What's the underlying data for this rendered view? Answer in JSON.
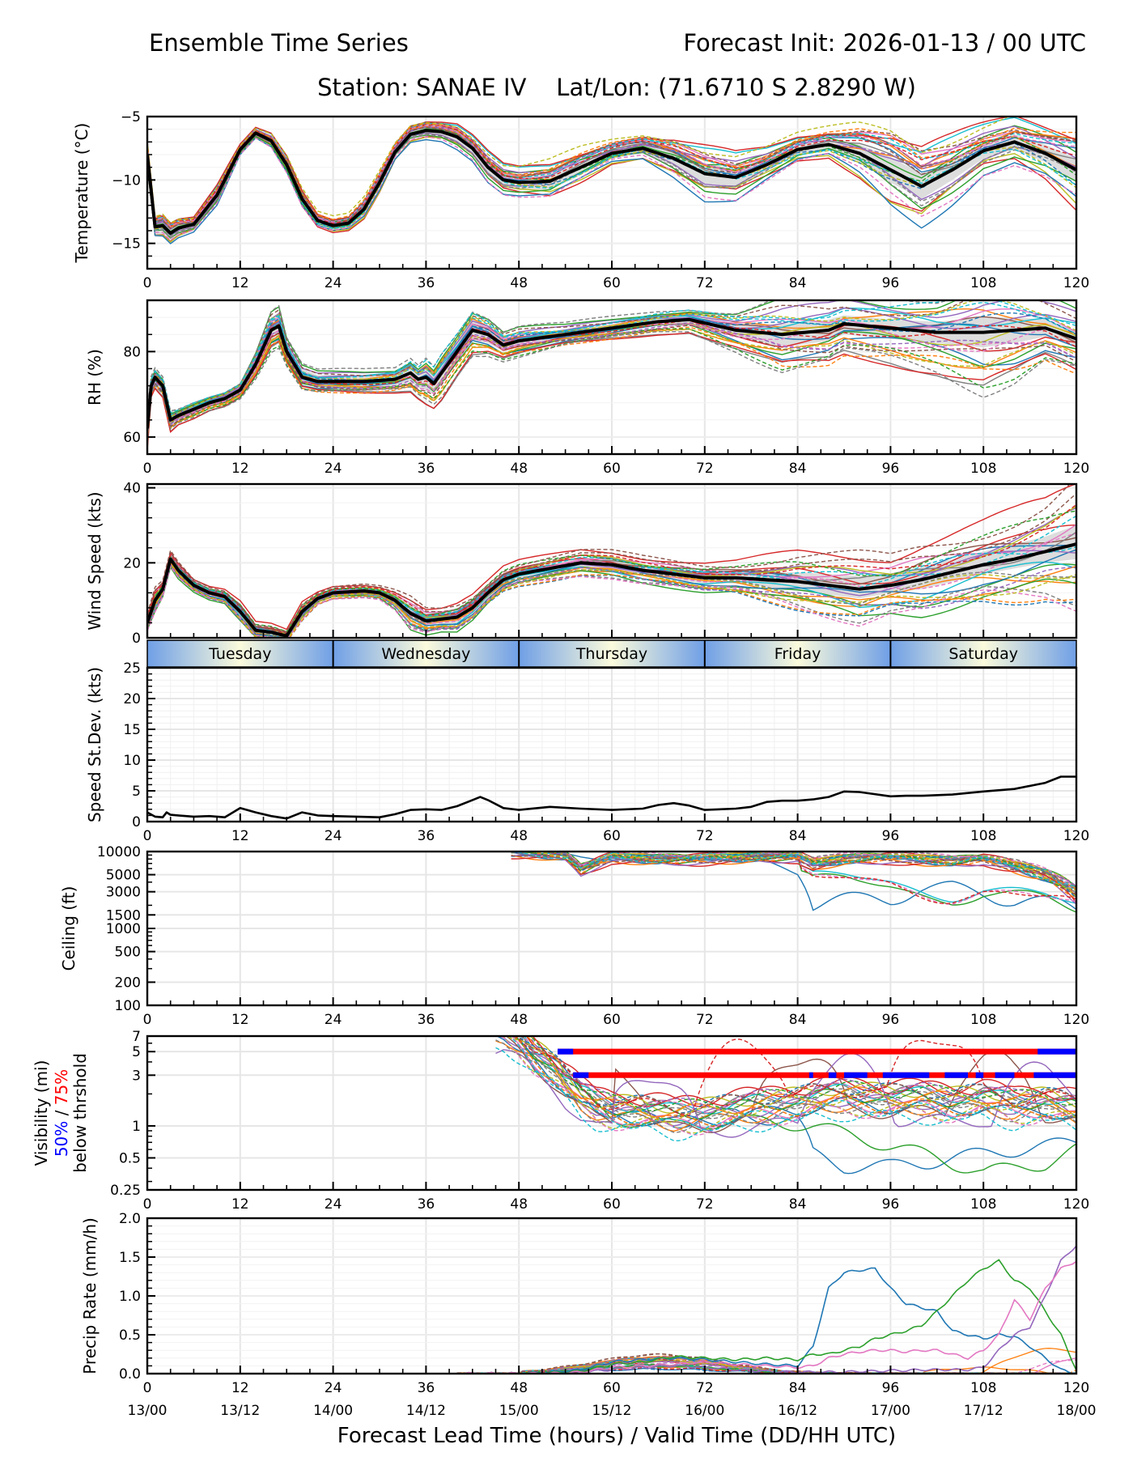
{
  "header": {
    "title_left": "Ensemble Time Series",
    "title_right": "Forecast Init: 2026-01-13 / 00 UTC",
    "subtitle": "Station: SANAE IV    Lat/Lon: (71.6710 S 2.8290 W)"
  },
  "colors": {
    "ensemble_palette": [
      "#1f77b4",
      "#ff7f0e",
      "#2ca02c",
      "#d62728",
      "#9467bd",
      "#8c564b",
      "#e377c2",
      "#7f7f7f",
      "#bcbd22",
      "#17becf"
    ],
    "mean_line": "#000000",
    "spread_band": "#d9d9d9",
    "vis_50pct": "#0000ff",
    "vis_75pct": "#ff0000",
    "day_band_edge": "#7aa7e6",
    "day_band_center": "#fbfbdc",
    "grid": "#e6e6e6"
  },
  "x_axis": {
    "label": "Forecast Lead Time (hours) / Valid Time (DD/HH UTC)",
    "ticks": [
      0,
      12,
      24,
      36,
      48,
      60,
      72,
      84,
      96,
      108,
      120
    ],
    "tick_labels": [
      "0",
      "12",
      "24",
      "36",
      "48",
      "60",
      "72",
      "84",
      "96",
      "108",
      "120"
    ],
    "valid_time_labels": [
      "13/00",
      "13/12",
      "14/00",
      "14/12",
      "15/00",
      "15/12",
      "16/00",
      "16/12",
      "17/00",
      "17/12",
      "18/00"
    ],
    "range": [
      0,
      120
    ]
  },
  "day_band": {
    "days": [
      {
        "label": "Tuesday",
        "start": 0,
        "end": 24
      },
      {
        "label": "Wednesday",
        "start": 24,
        "end": 48
      },
      {
        "label": "Thursday",
        "start": 48,
        "end": 72
      },
      {
        "label": "Friday",
        "start": 72,
        "end": 96
      },
      {
        "label": "Saturday",
        "start": 96,
        "end": 120
      }
    ]
  },
  "chart_data": [
    {
      "id": "temperature",
      "type": "line",
      "ylabel": "Temperature (°C)",
      "ylim": [
        -17,
        -5
      ],
      "yticks": [
        -15,
        -10,
        -5
      ],
      "ytick_labels": [
        "−15",
        "−10",
        "−5"
      ],
      "grid": true,
      "x": [
        0,
        1,
        2,
        3,
        4,
        6,
        9,
        12,
        14,
        16,
        18,
        20,
        22,
        24,
        26,
        28,
        30,
        32,
        34,
        36,
        38,
        40,
        42,
        44,
        46,
        48,
        52,
        56,
        60,
        64,
        68,
        72,
        76,
        80,
        84,
        88,
        92,
        96,
        100,
        104,
        108,
        112,
        116,
        120
      ],
      "mean": [
        -8,
        -13.7,
        -13.6,
        -14.2,
        -13.8,
        -13.5,
        -11.2,
        -7.6,
        -6.3,
        -6.9,
        -8.8,
        -11.5,
        -13.2,
        -13.6,
        -13.4,
        -12.3,
        -10.2,
        -7.8,
        -6.4,
        -6.1,
        -6.2,
        -6.6,
        -7.5,
        -9,
        -10,
        -10.2,
        -10.1,
        -9,
        -7.9,
        -7.5,
        -8.3,
        -9.5,
        -9.8,
        -8.8,
        -7.6,
        -7.2,
        -7.9,
        -9.2,
        -10.5,
        -9.2,
        -7.7,
        -7,
        -7.9,
        -9.2
      ],
      "band_low": [
        -9,
        -14.5,
        -14.5,
        -15,
        -14.5,
        -14,
        -11.8,
        -7.9,
        -6.6,
        -7.3,
        -9.3,
        -12,
        -13.6,
        -14,
        -13.8,
        -12.8,
        -10.7,
        -8.2,
        -6.8,
        -6.5,
        -6.6,
        -7.1,
        -8,
        -9.6,
        -10.6,
        -10.8,
        -10.8,
        -9.6,
        -8.3,
        -7.9,
        -8.9,
        -10.3,
        -10.5,
        -9.3,
        -8,
        -7.6,
        -8.6,
        -10.2,
        -11.5,
        -10,
        -8.3,
        -7.6,
        -8.6,
        -10.2
      ],
      "band_high": [
        -7,
        -13,
        -12.8,
        -13.4,
        -13.1,
        -13,
        -10.6,
        -7.3,
        -6,
        -6.5,
        -8.3,
        -11,
        -12.8,
        -13.2,
        -13,
        -11.8,
        -9.7,
        -7.4,
        -6,
        -5.7,
        -5.8,
        -6.1,
        -7,
        -8.4,
        -9.4,
        -9.6,
        -9.4,
        -8.4,
        -7.5,
        -7.1,
        -7.7,
        -8.7,
        -9.1,
        -8.3,
        -7.2,
        -6.8,
        -7.2,
        -8.2,
        -9.5,
        -8.4,
        -7.1,
        -6.4,
        -7.2,
        -8.3
      ],
      "ensemble_note": "30 ensemble members (solid and dashed colored lines) with ensemble mean (thick black) and spread shading"
    },
    {
      "id": "relative_humidity",
      "type": "line",
      "ylabel": "RH (%)",
      "ylim": [
        56,
        92
      ],
      "yticks": [
        60,
        80
      ],
      "ytick_labels": [
        "60",
        "80"
      ],
      "grid": true,
      "x": [
        0,
        0.5,
        1,
        2,
        3,
        4,
        6,
        8,
        10,
        12,
        14,
        16,
        17,
        18,
        20,
        22,
        24,
        28,
        32,
        34,
        35,
        36,
        37,
        38,
        40,
        42,
        44,
        46,
        48,
        54,
        60,
        66,
        70,
        76,
        82,
        88,
        90,
        96,
        102,
        108,
        112,
        116,
        120
      ],
      "mean": [
        62,
        72,
        74,
        72,
        64,
        65,
        66.5,
        68,
        69,
        71,
        77,
        85,
        86,
        80,
        74,
        73,
        73,
        73,
        73.5,
        75,
        73.5,
        74,
        72.5,
        75,
        80,
        85,
        84,
        81.5,
        82.5,
        84,
        85.5,
        87,
        87.5,
        85,
        84,
        85,
        86.5,
        85.5,
        84.5,
        84.5,
        85,
        85.5,
        83
      ],
      "band_low": [
        58,
        70,
        72,
        70,
        62,
        63.5,
        65,
        67,
        68,
        70,
        75,
        82,
        83,
        78,
        72.5,
        71.5,
        71.5,
        71.5,
        72,
        73,
        71.5,
        71,
        70,
        72,
        77.5,
        82.5,
        82,
        80,
        81,
        83,
        84.5,
        86,
        86.5,
        83.5,
        81,
        82.5,
        84,
        83,
        82,
        81,
        82,
        83.5,
        81
      ],
      "band_high": [
        66,
        74,
        76,
        74,
        66,
        66.5,
        68,
        69.5,
        70.5,
        72.5,
        79,
        88,
        89,
        82,
        76,
        74.5,
        74.5,
        74.5,
        75,
        77,
        75.5,
        76.5,
        75,
        77.5,
        82.5,
        87.5,
        86,
        83,
        84,
        85,
        86.5,
        88,
        88.5,
        86.5,
        86.5,
        87.5,
        88.5,
        87.5,
        87,
        88,
        88,
        87.5,
        85
      ]
    },
    {
      "id": "wind_speed",
      "type": "line",
      "ylabel": "Wind Speed (kts)",
      "ylim": [
        0,
        41
      ],
      "yticks": [
        0,
        20,
        40
      ],
      "ytick_labels": [
        "0",
        "20",
        "40"
      ],
      "grid": true,
      "x": [
        0,
        1,
        2,
        3,
        4,
        6,
        8,
        10,
        12,
        14,
        16,
        18,
        20,
        22,
        24,
        28,
        30,
        32,
        34,
        36,
        38,
        40,
        42,
        44,
        46,
        48,
        52,
        56,
        60,
        64,
        68,
        72,
        76,
        80,
        84,
        88,
        92,
        96,
        100,
        104,
        108,
        112,
        116,
        120
      ],
      "mean": [
        4,
        10,
        13,
        21,
        18,
        14,
        12,
        11,
        7,
        2,
        1.5,
        0.5,
        7,
        10.5,
        12,
        12.5,
        12,
        10,
        6.5,
        4.5,
        5,
        5.5,
        8,
        12,
        15.5,
        17,
        18.5,
        20,
        19.5,
        18,
        17,
        16,
        16,
        15.5,
        15,
        14,
        13,
        14,
        15.5,
        17.5,
        19.5,
        21,
        23,
        25
      ],
      "band_low": [
        2,
        7,
        11,
        19,
        16,
        12.5,
        10.5,
        9.5,
        5,
        0.5,
        0.2,
        0,
        5.5,
        9.5,
        11,
        11.5,
        11,
        8.5,
        4,
        3,
        3.5,
        4,
        6.5,
        10.5,
        14,
        15.5,
        17,
        18.5,
        18,
        16.5,
        15.5,
        14.5,
        14.5,
        13.5,
        12.5,
        11.5,
        10.5,
        12,
        13,
        15,
        17,
        18.5,
        20,
        21
      ],
      "band_high": [
        6,
        13,
        15,
        23,
        20,
        15.5,
        13.5,
        12.5,
        9,
        3.5,
        3,
        2,
        8.5,
        11.5,
        13,
        13.5,
        13,
        11.5,
        9,
        7,
        7,
        8,
        10,
        13.5,
        17,
        18.5,
        20,
        21.5,
        21,
        19.5,
        18.5,
        17.5,
        17.5,
        17.5,
        17.5,
        17,
        16.5,
        17,
        19,
        21,
        23,
        25,
        27,
        30
      ]
    },
    {
      "id": "speed_stdev",
      "type": "line",
      "ylabel": "Speed St.Dev. (kts)",
      "ylim": [
        0,
        25
      ],
      "yticks": [
        0,
        5,
        10,
        15,
        20,
        25
      ],
      "ytick_labels": [
        "0",
        "5",
        "10",
        "15",
        "20",
        "25"
      ],
      "grid": true,
      "x": [
        0,
        1,
        2,
        2.5,
        3,
        4,
        6,
        8,
        10,
        12,
        14,
        16,
        18,
        20,
        22,
        24,
        27,
        30,
        32,
        34,
        36,
        38,
        40,
        42,
        43,
        44,
        46,
        48,
        52,
        56,
        60,
        64,
        66,
        68,
        70,
        72,
        76,
        78,
        80,
        82,
        84,
        86,
        88,
        90,
        92,
        96,
        98,
        100,
        104,
        108,
        112,
        116,
        118,
        120
      ],
      "values": [
        1.5,
        0.8,
        0.7,
        1.5,
        1.1,
        1.0,
        0.8,
        0.9,
        0.7,
        2.2,
        1.5,
        0.9,
        0.5,
        1.5,
        1.0,
        0.9,
        0.8,
        0.7,
        1.2,
        1.9,
        2.0,
        1.9,
        2.5,
        3.5,
        4.0,
        3.5,
        2.2,
        1.9,
        2.4,
        2.1,
        1.9,
        2.1,
        2.7,
        3.0,
        2.6,
        1.9,
        2.1,
        2.4,
        3.2,
        3.4,
        3.4,
        3.6,
        4.0,
        4.9,
        4.8,
        4.1,
        4.2,
        4.2,
        4.4,
        4.9,
        5.3,
        6.3,
        7.3,
        7.3
      ],
      "grid_minor": true
    },
    {
      "id": "ceiling",
      "type": "line",
      "scale": "log",
      "ylabel": "Ceiling (ft)",
      "ylim": [
        100,
        10000
      ],
      "yticks": [
        100,
        200,
        500,
        1000,
        1500,
        3000,
        5000,
        10000
      ],
      "ytick_labels": [
        "100",
        "200",
        "500",
        "1000",
        "1500",
        "3000",
        "5000",
        "10000"
      ],
      "grid": true,
      "ensemble_note": "Members mostly at/near 10000 ft from ~47 h onward; dips to ~2000-5000 ft after 84 h",
      "x": [
        47,
        50,
        54,
        56,
        60,
        66,
        72,
        78,
        84,
        86,
        90,
        96,
        100,
        104,
        108,
        112,
        116,
        120
      ],
      "typical_member": [
        10000,
        9500,
        8800,
        6000,
        8500,
        8000,
        8200,
        8500,
        8800,
        7000,
        8000,
        8500,
        8000,
        7500,
        8200,
        6500,
        5000,
        3000
      ],
      "low_member": [
        10000,
        10000,
        9500,
        9000,
        9000,
        9000,
        9000,
        8500,
        6000,
        2400,
        2500,
        2700,
        3500,
        3800,
        3200,
        2500,
        2200,
        2100
      ]
    },
    {
      "id": "visibility",
      "type": "line",
      "scale": "log",
      "ylabel": "Visibility (mi)",
      "ylabel_line2_blue": "50%",
      "ylabel_line2_sep": " / ",
      "ylabel_line2_red": "75%",
      "ylabel_line3": "below thrshold",
      "ylim": [
        0.25,
        7
      ],
      "yticks": [
        0.25,
        0.5,
        1,
        3,
        5,
        7
      ],
      "ytick_labels": [
        "0.25",
        "0.5",
        "1",
        "3",
        "5",
        "7"
      ],
      "grid": true,
      "threshold_5mi": {
        "start": 53,
        "end": 120,
        "blue_segments": [
          [
            53,
            55
          ],
          [
            115,
            120
          ]
        ]
      },
      "threshold_3mi": {
        "start": 55,
        "end": 120,
        "blue_segments": [
          [
            55,
            57
          ],
          [
            85.5,
            86
          ],
          [
            88,
            89
          ],
          [
            90,
            93
          ],
          [
            95,
            101
          ],
          [
            103,
            106
          ],
          [
            107,
            108
          ],
          [
            109.5,
            112
          ],
          [
            114.5,
            120
          ]
        ]
      },
      "x": [
        46,
        50,
        54,
        56,
        58,
        60,
        64,
        68,
        72,
        76,
        80,
        84,
        86,
        90,
        96,
        100,
        104,
        108,
        112,
        116,
        120
      ],
      "typical_member": [
        7,
        4,
        2.2,
        1.6,
        1.3,
        1.2,
        1.15,
        1.05,
        1.1,
        1.2,
        1.3,
        1.4,
        1.5,
        1.6,
        1.5,
        1.5,
        1.4,
        1.5,
        1.3,
        1.4,
        1.2
      ],
      "low_member_a": [
        7,
        5,
        3,
        2,
        1.6,
        1.3,
        1.2,
        1.1,
        1.2,
        1.3,
        1.2,
        1.1,
        0.55,
        0.42,
        0.42,
        0.45,
        0.5,
        0.55,
        0.6,
        0.65,
        0.7
      ],
      "low_member_b": [
        7,
        5,
        3,
        2,
        1.5,
        1.2,
        1.1,
        1.0,
        1.1,
        1.1,
        1.1,
        1.05,
        1.0,
        0.85,
        0.65,
        0.55,
        0.45,
        0.37,
        0.4,
        0.45,
        0.6
      ]
    },
    {
      "id": "precip_rate",
      "type": "line",
      "ylabel": "Precip Rate (mm/h)",
      "ylim": [
        0,
        2.0
      ],
      "yticks": [
        0.0,
        0.5,
        1.0,
        1.5,
        2.0
      ],
      "ytick_labels": [
        "0.0",
        "0.5",
        "1.0",
        "1.5",
        "2.0"
      ],
      "grid": true,
      "x": [
        40,
        48,
        52,
        56,
        60,
        64,
        68,
        72,
        76,
        80,
        84,
        86,
        88,
        90,
        92,
        94,
        96,
        98,
        100,
        102,
        104,
        106,
        108,
        110,
        112,
        114,
        116,
        118,
        120
      ],
      "member_blue": [
        0,
        0,
        0.02,
        0.05,
        0.15,
        0.18,
        0.2,
        0.18,
        0.15,
        0.12,
        0.1,
        0.35,
        1.1,
        1.3,
        1.33,
        1.35,
        1.1,
        0.9,
        0.85,
        0.8,
        0.55,
        0.5,
        0.45,
        0.5,
        0.48,
        0.35,
        0.2,
        0.05,
        0
      ],
      "member_green": [
        0,
        0,
        0.01,
        0.03,
        0.12,
        0.15,
        0.22,
        0.2,
        0.18,
        0.2,
        0.18,
        0.25,
        0.25,
        0.3,
        0.35,
        0.45,
        0.5,
        0.55,
        0.62,
        0.8,
        1.0,
        1.2,
        1.35,
        1.45,
        1.2,
        1.1,
        0.8,
        0.5,
        0.05
      ],
      "member_purple": [
        0,
        0,
        0,
        0.02,
        0.05,
        0.08,
        0.1,
        0.08,
        0.05,
        0.03,
        0.02,
        0.02,
        0.02,
        0.02,
        0.03,
        0.03,
        0.04,
        0.04,
        0.05,
        0.05,
        0.05,
        0.05,
        0.08,
        0.3,
        0.5,
        0.6,
        1.0,
        1.45,
        1.65
      ],
      "member_pink": [
        0,
        0,
        0,
        0.02,
        0.08,
        0.1,
        0.12,
        0.15,
        0.12,
        0.1,
        0.08,
        0.1,
        0.2,
        0.25,
        0.28,
        0.3,
        0.3,
        0.28,
        0.3,
        0.3,
        0.25,
        0.2,
        0.3,
        0.5,
        0.95,
        0.7,
        1.1,
        1.35,
        1.45
      ]
    }
  ]
}
